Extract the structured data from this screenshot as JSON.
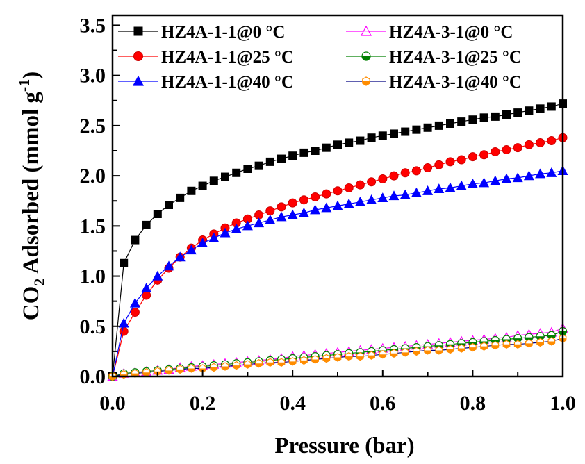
{
  "chart_data": {
    "type": "line",
    "xlabel": "Pressure (bar)",
    "ylabel": {
      "prefix": "CO",
      "sub": "2",
      "middle": " Adsorbed (mmol g",
      "sup": "-1",
      "suffix": ")"
    },
    "xlim": [
      0.0,
      1.0
    ],
    "ylim": [
      0.0,
      3.6
    ],
    "x_ticks": [
      "0.0",
      "0.2",
      "0.4",
      "0.6",
      "0.8",
      "1.0"
    ],
    "y_ticks": [
      "0.0",
      "0.5",
      "1.0",
      "1.5",
      "2.0",
      "2.5",
      "3.0",
      "3.5"
    ],
    "grid": false,
    "legend_position": "top",
    "x": [
      0.0,
      0.025,
      0.05,
      0.075,
      0.1,
      0.125,
      0.15,
      0.175,
      0.2,
      0.225,
      0.25,
      0.275,
      0.3,
      0.325,
      0.35,
      0.375,
      0.4,
      0.425,
      0.45,
      0.475,
      0.5,
      0.525,
      0.55,
      0.575,
      0.6,
      0.625,
      0.65,
      0.675,
      0.7,
      0.725,
      0.75,
      0.775,
      0.8,
      0.825,
      0.85,
      0.875,
      0.9,
      0.925,
      0.95,
      0.975,
      1.0
    ],
    "series": [
      {
        "name": "HZ4A-1-1@0 °C",
        "color": "#000000",
        "marker": "square",
        "fill": "#000000",
        "values": [
          0.0,
          1.13,
          1.36,
          1.51,
          1.62,
          1.71,
          1.78,
          1.85,
          1.9,
          1.95,
          1.99,
          2.03,
          2.07,
          2.1,
          2.14,
          2.17,
          2.2,
          2.23,
          2.25,
          2.28,
          2.31,
          2.33,
          2.35,
          2.38,
          2.4,
          2.42,
          2.44,
          2.46,
          2.48,
          2.5,
          2.52,
          2.54,
          2.56,
          2.58,
          2.59,
          2.61,
          2.63,
          2.65,
          2.67,
          2.69,
          2.72
        ]
      },
      {
        "name": "HZ4A-1-1@25 °C",
        "color": "#ff0000",
        "marker": "circle",
        "fill": "#ff0000",
        "values": [
          0.0,
          0.45,
          0.64,
          0.81,
          0.96,
          1.08,
          1.19,
          1.28,
          1.36,
          1.42,
          1.48,
          1.53,
          1.57,
          1.61,
          1.65,
          1.69,
          1.73,
          1.76,
          1.79,
          1.82,
          1.85,
          1.88,
          1.91,
          1.94,
          1.97,
          2.0,
          2.03,
          2.05,
          2.08,
          2.11,
          2.14,
          2.16,
          2.19,
          2.21,
          2.24,
          2.26,
          2.28,
          2.31,
          2.33,
          2.35,
          2.38
        ]
      },
      {
        "name": "HZ4A-1-1@40 °C",
        "color": "#0000ff",
        "marker": "triangle-up",
        "fill": "#0000ff",
        "values": [
          0.0,
          0.53,
          0.73,
          0.88,
          1.0,
          1.1,
          1.19,
          1.26,
          1.33,
          1.38,
          1.43,
          1.47,
          1.5,
          1.53,
          1.56,
          1.59,
          1.61,
          1.63,
          1.66,
          1.68,
          1.7,
          1.72,
          1.74,
          1.76,
          1.78,
          1.8,
          1.81,
          1.83,
          1.85,
          1.87,
          1.88,
          1.9,
          1.92,
          1.93,
          1.95,
          1.97,
          1.98,
          2.0,
          2.02,
          2.03,
          2.05
        ]
      },
      {
        "name": "HZ4A-3-1@0 °C",
        "color": "#ff00ff",
        "marker": "triangle-up-open",
        "fill": "none",
        "values": [
          0.0,
          0.03,
          0.04,
          0.05,
          0.06,
          0.07,
          0.09,
          0.1,
          0.11,
          0.12,
          0.13,
          0.14,
          0.15,
          0.16,
          0.17,
          0.18,
          0.2,
          0.21,
          0.22,
          0.23,
          0.24,
          0.25,
          0.26,
          0.27,
          0.28,
          0.29,
          0.3,
          0.31,
          0.32,
          0.33,
          0.34,
          0.35,
          0.36,
          0.37,
          0.38,
          0.39,
          0.41,
          0.42,
          0.43,
          0.44,
          0.48
        ]
      },
      {
        "name": "HZ4A-3-1@25 °C",
        "color": "#008000",
        "marker": "circle-half",
        "fill": "#008000",
        "values": [
          0.0,
          0.03,
          0.04,
          0.05,
          0.06,
          0.07,
          0.08,
          0.09,
          0.1,
          0.11,
          0.12,
          0.13,
          0.14,
          0.15,
          0.16,
          0.17,
          0.18,
          0.19,
          0.2,
          0.21,
          0.22,
          0.23,
          0.24,
          0.25,
          0.26,
          0.27,
          0.28,
          0.29,
          0.3,
          0.31,
          0.32,
          0.33,
          0.34,
          0.35,
          0.36,
          0.37,
          0.38,
          0.39,
          0.4,
          0.41,
          0.45
        ]
      },
      {
        "name": "HZ4A-3-1@40 °C",
        "color": "#000080",
        "marker": "hexagon-half",
        "fill": "#ff8c00",
        "values": [
          0.0,
          0.02,
          0.03,
          0.04,
          0.05,
          0.06,
          0.07,
          0.08,
          0.08,
          0.09,
          0.1,
          0.11,
          0.12,
          0.13,
          0.14,
          0.14,
          0.15,
          0.16,
          0.17,
          0.18,
          0.19,
          0.2,
          0.2,
          0.21,
          0.22,
          0.23,
          0.24,
          0.25,
          0.26,
          0.26,
          0.27,
          0.28,
          0.29,
          0.3,
          0.31,
          0.32,
          0.32,
          0.33,
          0.34,
          0.35,
          0.38
        ]
      }
    ]
  }
}
